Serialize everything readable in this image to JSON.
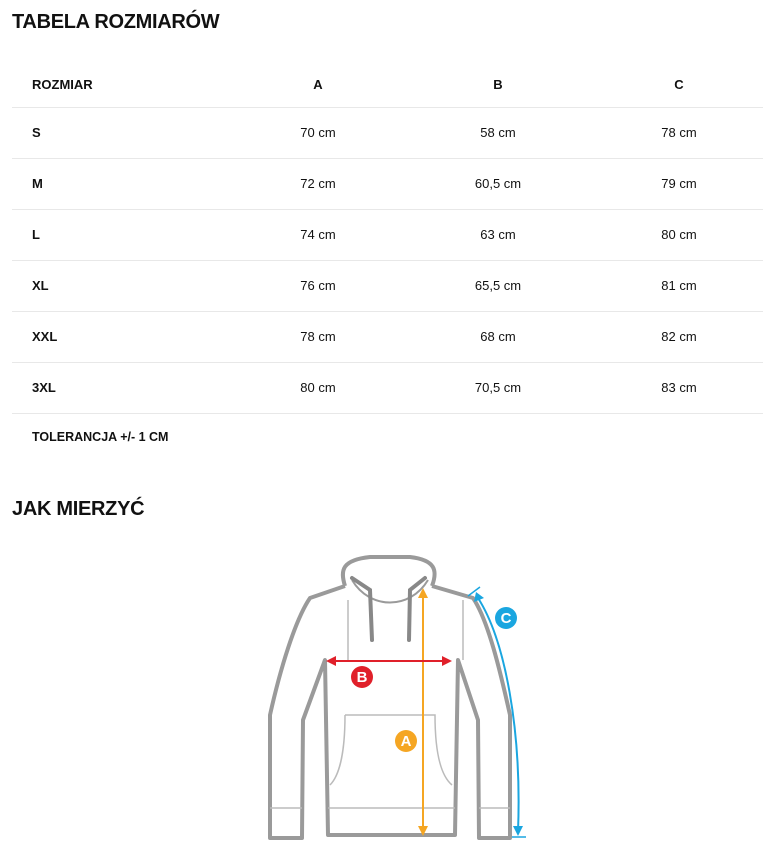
{
  "title": "TABELA ROZMIARÓW",
  "table": {
    "headers": [
      "ROZMIAR",
      "A",
      "B",
      "C"
    ],
    "rows": [
      [
        "S",
        "70 cm",
        "58 cm",
        "78 cm"
      ],
      [
        "M",
        "72 cm",
        "60,5 cm",
        "79 cm"
      ],
      [
        "L",
        "74 cm",
        "63 cm",
        "80 cm"
      ],
      [
        "XL",
        "76 cm",
        "65,5 cm",
        "81 cm"
      ],
      [
        "XXL",
        "78 cm",
        "68 cm",
        "82 cm"
      ],
      [
        "3XL",
        "80 cm",
        "70,5 cm",
        "83 cm"
      ]
    ]
  },
  "tolerance": "TOLERANCJA +/- 1 CM",
  "how_title": "JAK MIERZYĆ",
  "diagram": {
    "labels": [
      "A",
      "B",
      "C"
    ],
    "colors": {
      "A": "#f5a623",
      "B": "#e0202a",
      "C": "#1aa6e0",
      "outline": "#9a9a9a"
    }
  }
}
